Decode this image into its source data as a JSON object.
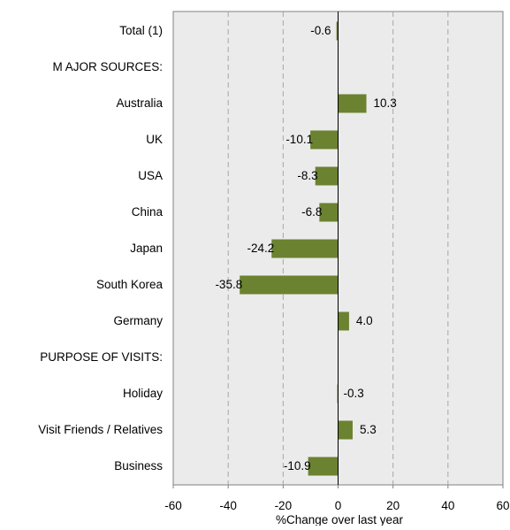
{
  "chart_data": {
    "type": "bar",
    "orientation": "horizontal",
    "title": "",
    "xlabel": "%Change over last year",
    "ylabel": "",
    "xlim": [
      -60,
      60
    ],
    "x_ticks": [
      -60,
      -40,
      -20,
      0,
      20,
      40,
      60
    ],
    "grid": "vertical dashed",
    "legend": "none",
    "colors": {
      "bar": "#6b8230",
      "plot_background": "#ebebeb",
      "gridline": "#a6a6a6"
    },
    "categories": [
      "Total (1)",
      "M AJOR SOURCES:",
      "Australia",
      "UK",
      "USA",
      "China",
      "Japan",
      "South Korea",
      "Germany",
      "PURPOSE OF VISITS:",
      "Holiday",
      "Visit Friends / Relatives",
      "Business"
    ],
    "values": [
      -0.6,
      null,
      10.3,
      -10.1,
      -8.3,
      -6.8,
      -24.2,
      -35.8,
      4.0,
      null,
      -0.3,
      5.3,
      -10.9
    ],
    "value_labels": [
      "-0.6",
      "",
      "10.3",
      "-10.1",
      "-8.3",
      "-6.8",
      "-24.2",
      "-35.8",
      "4.0",
      "",
      "-0.3",
      "5.3",
      "-10.9"
    ]
  }
}
